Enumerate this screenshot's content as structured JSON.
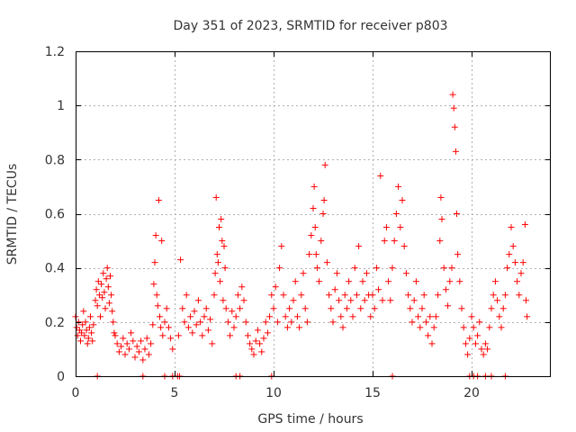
{
  "chart_data": {
    "type": "scatter",
    "title": "Day 351 of 2023, SRMTID for receiver p803",
    "xlabel": "GPS time / hours",
    "ylabel": "SRMTID / TECUs",
    "xlim": [
      0,
      24
    ],
    "ylim": [
      0,
      1.2
    ],
    "xticks": [
      0,
      5,
      10,
      15,
      20
    ],
    "xtick_labels": [
      "0",
      "5",
      "10",
      "15",
      "20"
    ],
    "yticks": [
      0,
      0.2,
      0.4,
      0.6,
      0.8,
      1.0,
      1.2
    ],
    "ytick_labels": [
      "0",
      "0.2",
      "0.4",
      "0.6",
      "0.8",
      "1",
      "1.2"
    ],
    "grid": true,
    "marker": "+",
    "color": "#ff0000",
    "series": [
      {
        "name": "SRMTID",
        "points": [
          [
            0.0,
            0.22
          ],
          [
            0.05,
            0.18
          ],
          [
            0.1,
            0.15
          ],
          [
            0.15,
            0.2
          ],
          [
            0.2,
            0.17
          ],
          [
            0.25,
            0.13
          ],
          [
            0.3,
            0.16
          ],
          [
            0.35,
            0.19
          ],
          [
            0.4,
            0.24
          ],
          [
            0.45,
            0.15
          ],
          [
            0.5,
            0.2
          ],
          [
            0.55,
            0.17
          ],
          [
            0.6,
            0.12
          ],
          [
            0.65,
            0.14
          ],
          [
            0.7,
            0.18
          ],
          [
            0.75,
            0.22
          ],
          [
            0.8,
            0.16
          ],
          [
            0.85,
            0.13
          ],
          [
            0.9,
            0.19
          ],
          [
            1.0,
            0.28
          ],
          [
            1.05,
            0.32
          ],
          [
            1.1,
            0.26
          ],
          [
            1.15,
            0.35
          ],
          [
            1.2,
            0.3
          ],
          [
            1.25,
            0.22
          ],
          [
            1.3,
            0.34
          ],
          [
            1.35,
            0.29
          ],
          [
            1.4,
            0.38
          ],
          [
            1.45,
            0.31
          ],
          [
            1.5,
            0.25
          ],
          [
            1.55,
            0.36
          ],
          [
            1.6,
            0.4
          ],
          [
            1.65,
            0.33
          ],
          [
            1.7,
            0.27
          ],
          [
            1.75,
            0.37
          ],
          [
            1.8,
            0.3
          ],
          [
            1.85,
            0.24
          ],
          [
            1.9,
            0.2
          ],
          [
            1.95,
            0.16
          ],
          [
            2.0,
            0.15
          ],
          [
            2.1,
            0.12
          ],
          [
            2.2,
            0.09
          ],
          [
            2.3,
            0.11
          ],
          [
            2.4,
            0.14
          ],
          [
            2.5,
            0.08
          ],
          [
            2.6,
            0.12
          ],
          [
            2.7,
            0.1
          ],
          [
            2.8,
            0.16
          ],
          [
            2.9,
            0.13
          ],
          [
            3.0,
            0.07
          ],
          [
            3.1,
            0.11
          ],
          [
            3.2,
            0.09
          ],
          [
            3.3,
            0.13
          ],
          [
            3.4,
            0.06
          ],
          [
            3.5,
            0.1
          ],
          [
            3.6,
            0.14
          ],
          [
            3.7,
            0.08
          ],
          [
            3.8,
            0.12
          ],
          [
            3.9,
            0.19
          ],
          [
            3.95,
            0.34
          ],
          [
            4.0,
            0.42
          ],
          [
            4.05,
            0.52
          ],
          [
            4.1,
            0.3
          ],
          [
            4.15,
            0.26
          ],
          [
            4.2,
            0.65
          ],
          [
            4.25,
            0.22
          ],
          [
            4.3,
            0.18
          ],
          [
            4.35,
            0.5
          ],
          [
            4.4,
            0.15
          ],
          [
            4.5,
            0.2
          ],
          [
            4.6,
            0.25
          ],
          [
            4.7,
            0.18
          ],
          [
            4.8,
            0.14
          ],
          [
            4.9,
            0.1
          ],
          [
            5.2,
            0.15
          ],
          [
            5.3,
            0.43
          ],
          [
            5.4,
            0.25
          ],
          [
            5.5,
            0.2
          ],
          [
            5.6,
            0.3
          ],
          [
            5.7,
            0.18
          ],
          [
            5.8,
            0.22
          ],
          [
            5.9,
            0.16
          ],
          [
            6.0,
            0.24
          ],
          [
            6.1,
            0.19
          ],
          [
            6.2,
            0.28
          ],
          [
            6.3,
            0.2
          ],
          [
            6.4,
            0.15
          ],
          [
            6.5,
            0.22
          ],
          [
            6.6,
            0.25
          ],
          [
            6.7,
            0.17
          ],
          [
            6.8,
            0.21
          ],
          [
            6.9,
            0.12
          ],
          [
            7.0,
            0.3
          ],
          [
            7.05,
            0.38
          ],
          [
            7.1,
            0.66
          ],
          [
            7.15,
            0.45
          ],
          [
            7.2,
            0.42
          ],
          [
            7.25,
            0.55
          ],
          [
            7.3,
            0.35
          ],
          [
            7.35,
            0.58
          ],
          [
            7.4,
            0.5
          ],
          [
            7.45,
            0.28
          ],
          [
            7.5,
            0.48
          ],
          [
            7.55,
            0.4
          ],
          [
            7.6,
            0.25
          ],
          [
            7.7,
            0.2
          ],
          [
            7.8,
            0.15
          ],
          [
            7.9,
            0.24
          ],
          [
            8.0,
            0.18
          ],
          [
            8.1,
            0.22
          ],
          [
            8.2,
            0.3
          ],
          [
            8.3,
            0.25
          ],
          [
            8.4,
            0.33
          ],
          [
            8.5,
            0.28
          ],
          [
            8.6,
            0.2
          ],
          [
            8.7,
            0.15
          ],
          [
            8.8,
            0.12
          ],
          [
            8.9,
            0.1
          ],
          [
            9.0,
            0.08
          ],
          [
            9.1,
            0.13
          ],
          [
            9.2,
            0.17
          ],
          [
            9.3,
            0.12
          ],
          [
            9.4,
            0.09
          ],
          [
            9.5,
            0.14
          ],
          [
            9.6,
            0.2
          ],
          [
            9.7,
            0.16
          ],
          [
            9.8,
            0.22
          ],
          [
            9.9,
            0.3
          ],
          [
            10.0,
            0.25
          ],
          [
            10.1,
            0.33
          ],
          [
            10.2,
            0.2
          ],
          [
            10.3,
            0.4
          ],
          [
            10.4,
            0.48
          ],
          [
            10.5,
            0.3
          ],
          [
            10.6,
            0.22
          ],
          [
            10.7,
            0.18
          ],
          [
            10.8,
            0.25
          ],
          [
            10.9,
            0.2
          ],
          [
            11.0,
            0.28
          ],
          [
            11.1,
            0.35
          ],
          [
            11.2,
            0.22
          ],
          [
            11.3,
            0.18
          ],
          [
            11.4,
            0.3
          ],
          [
            11.5,
            0.38
          ],
          [
            11.6,
            0.25
          ],
          [
            11.7,
            0.2
          ],
          [
            11.8,
            0.45
          ],
          [
            11.9,
            0.52
          ],
          [
            12.0,
            0.62
          ],
          [
            12.05,
            0.7
          ],
          [
            12.1,
            0.55
          ],
          [
            12.15,
            0.45
          ],
          [
            12.2,
            0.4
          ],
          [
            12.3,
            0.35
          ],
          [
            12.4,
            0.5
          ],
          [
            12.5,
            0.6
          ],
          [
            12.55,
            0.65
          ],
          [
            12.6,
            0.78
          ],
          [
            12.7,
            0.42
          ],
          [
            12.8,
            0.3
          ],
          [
            12.9,
            0.25
          ],
          [
            13.0,
            0.2
          ],
          [
            13.1,
            0.32
          ],
          [
            13.2,
            0.38
          ],
          [
            13.3,
            0.28
          ],
          [
            13.4,
            0.22
          ],
          [
            13.5,
            0.18
          ],
          [
            13.6,
            0.3
          ],
          [
            13.7,
            0.25
          ],
          [
            13.8,
            0.35
          ],
          [
            13.9,
            0.28
          ],
          [
            14.0,
            0.22
          ],
          [
            14.1,
            0.4
          ],
          [
            14.2,
            0.3
          ],
          [
            14.3,
            0.48
          ],
          [
            14.4,
            0.25
          ],
          [
            14.5,
            0.35
          ],
          [
            14.6,
            0.28
          ],
          [
            14.7,
            0.38
          ],
          [
            14.8,
            0.3
          ],
          [
            14.9,
            0.22
          ],
          [
            15.0,
            0.3
          ],
          [
            15.1,
            0.25
          ],
          [
            15.2,
            0.4
          ],
          [
            15.3,
            0.32
          ],
          [
            15.4,
            0.74
          ],
          [
            15.5,
            0.28
          ],
          [
            15.6,
            0.5
          ],
          [
            15.7,
            0.55
          ],
          [
            15.8,
            0.35
          ],
          [
            15.9,
            0.28
          ],
          [
            16.0,
            0.4
          ],
          [
            16.1,
            0.5
          ],
          [
            16.2,
            0.6
          ],
          [
            16.3,
            0.7
          ],
          [
            16.4,
            0.55
          ],
          [
            16.5,
            0.65
          ],
          [
            16.6,
            0.48
          ],
          [
            16.7,
            0.38
          ],
          [
            16.8,
            0.3
          ],
          [
            16.9,
            0.25
          ],
          [
            17.0,
            0.2
          ],
          [
            17.1,
            0.28
          ],
          [
            17.2,
            0.35
          ],
          [
            17.3,
            0.22
          ],
          [
            17.4,
            0.18
          ],
          [
            17.5,
            0.25
          ],
          [
            17.6,
            0.3
          ],
          [
            17.7,
            0.2
          ],
          [
            17.8,
            0.15
          ],
          [
            17.9,
            0.22
          ],
          [
            18.0,
            0.12
          ],
          [
            18.1,
            0.18
          ],
          [
            18.2,
            0.22
          ],
          [
            18.3,
            0.3
          ],
          [
            18.4,
            0.5
          ],
          [
            18.45,
            0.66
          ],
          [
            18.5,
            0.58
          ],
          [
            18.6,
            0.4
          ],
          [
            18.7,
            0.32
          ],
          [
            18.8,
            0.26
          ],
          [
            18.9,
            0.35
          ],
          [
            19.0,
            0.4
          ],
          [
            19.05,
            1.04
          ],
          [
            19.1,
            0.99
          ],
          [
            19.15,
            0.92
          ],
          [
            19.2,
            0.83
          ],
          [
            19.25,
            0.6
          ],
          [
            19.3,
            0.45
          ],
          [
            19.4,
            0.35
          ],
          [
            19.5,
            0.25
          ],
          [
            19.6,
            0.18
          ],
          [
            19.7,
            0.12
          ],
          [
            19.8,
            0.08
          ],
          [
            19.9,
            0.14
          ],
          [
            20.0,
            0.22
          ],
          [
            20.1,
            0.18
          ],
          [
            20.2,
            0.12
          ],
          [
            20.3,
            0.15
          ],
          [
            20.4,
            0.2
          ],
          [
            20.5,
            0.1
          ],
          [
            20.6,
            0.08
          ],
          [
            20.7,
            0.12
          ],
          [
            20.8,
            0.1
          ],
          [
            20.9,
            0.18
          ],
          [
            21.0,
            0.25
          ],
          [
            21.1,
            0.3
          ],
          [
            21.2,
            0.35
          ],
          [
            21.3,
            0.28
          ],
          [
            21.4,
            0.22
          ],
          [
            21.5,
            0.18
          ],
          [
            21.6,
            0.25
          ],
          [
            21.7,
            0.3
          ],
          [
            21.8,
            0.4
          ],
          [
            21.9,
            0.45
          ],
          [
            22.0,
            0.55
          ],
          [
            22.1,
            0.48
          ],
          [
            22.2,
            0.42
          ],
          [
            22.3,
            0.35
          ],
          [
            22.4,
            0.3
          ],
          [
            22.5,
            0.38
          ],
          [
            22.6,
            0.42
          ],
          [
            22.7,
            0.56
          ],
          [
            22.75,
            0.28
          ],
          [
            22.8,
            0.22
          ],
          [
            1.1,
            0.0
          ],
          [
            3.4,
            0.0
          ],
          [
            4.5,
            0.0
          ],
          [
            4.9,
            0.0
          ],
          [
            5.15,
            0.0
          ],
          [
            5.25,
            0.0
          ],
          [
            8.1,
            0.0
          ],
          [
            8.3,
            0.0
          ],
          [
            9.9,
            0.0
          ],
          [
            16.0,
            0.0
          ],
          [
            19.9,
            0.0
          ],
          [
            20.1,
            0.0
          ],
          [
            20.3,
            0.0
          ],
          [
            20.7,
            0.0
          ],
          [
            21.0,
            0.0
          ],
          [
            21.7,
            0.0
          ]
        ]
      }
    ]
  }
}
